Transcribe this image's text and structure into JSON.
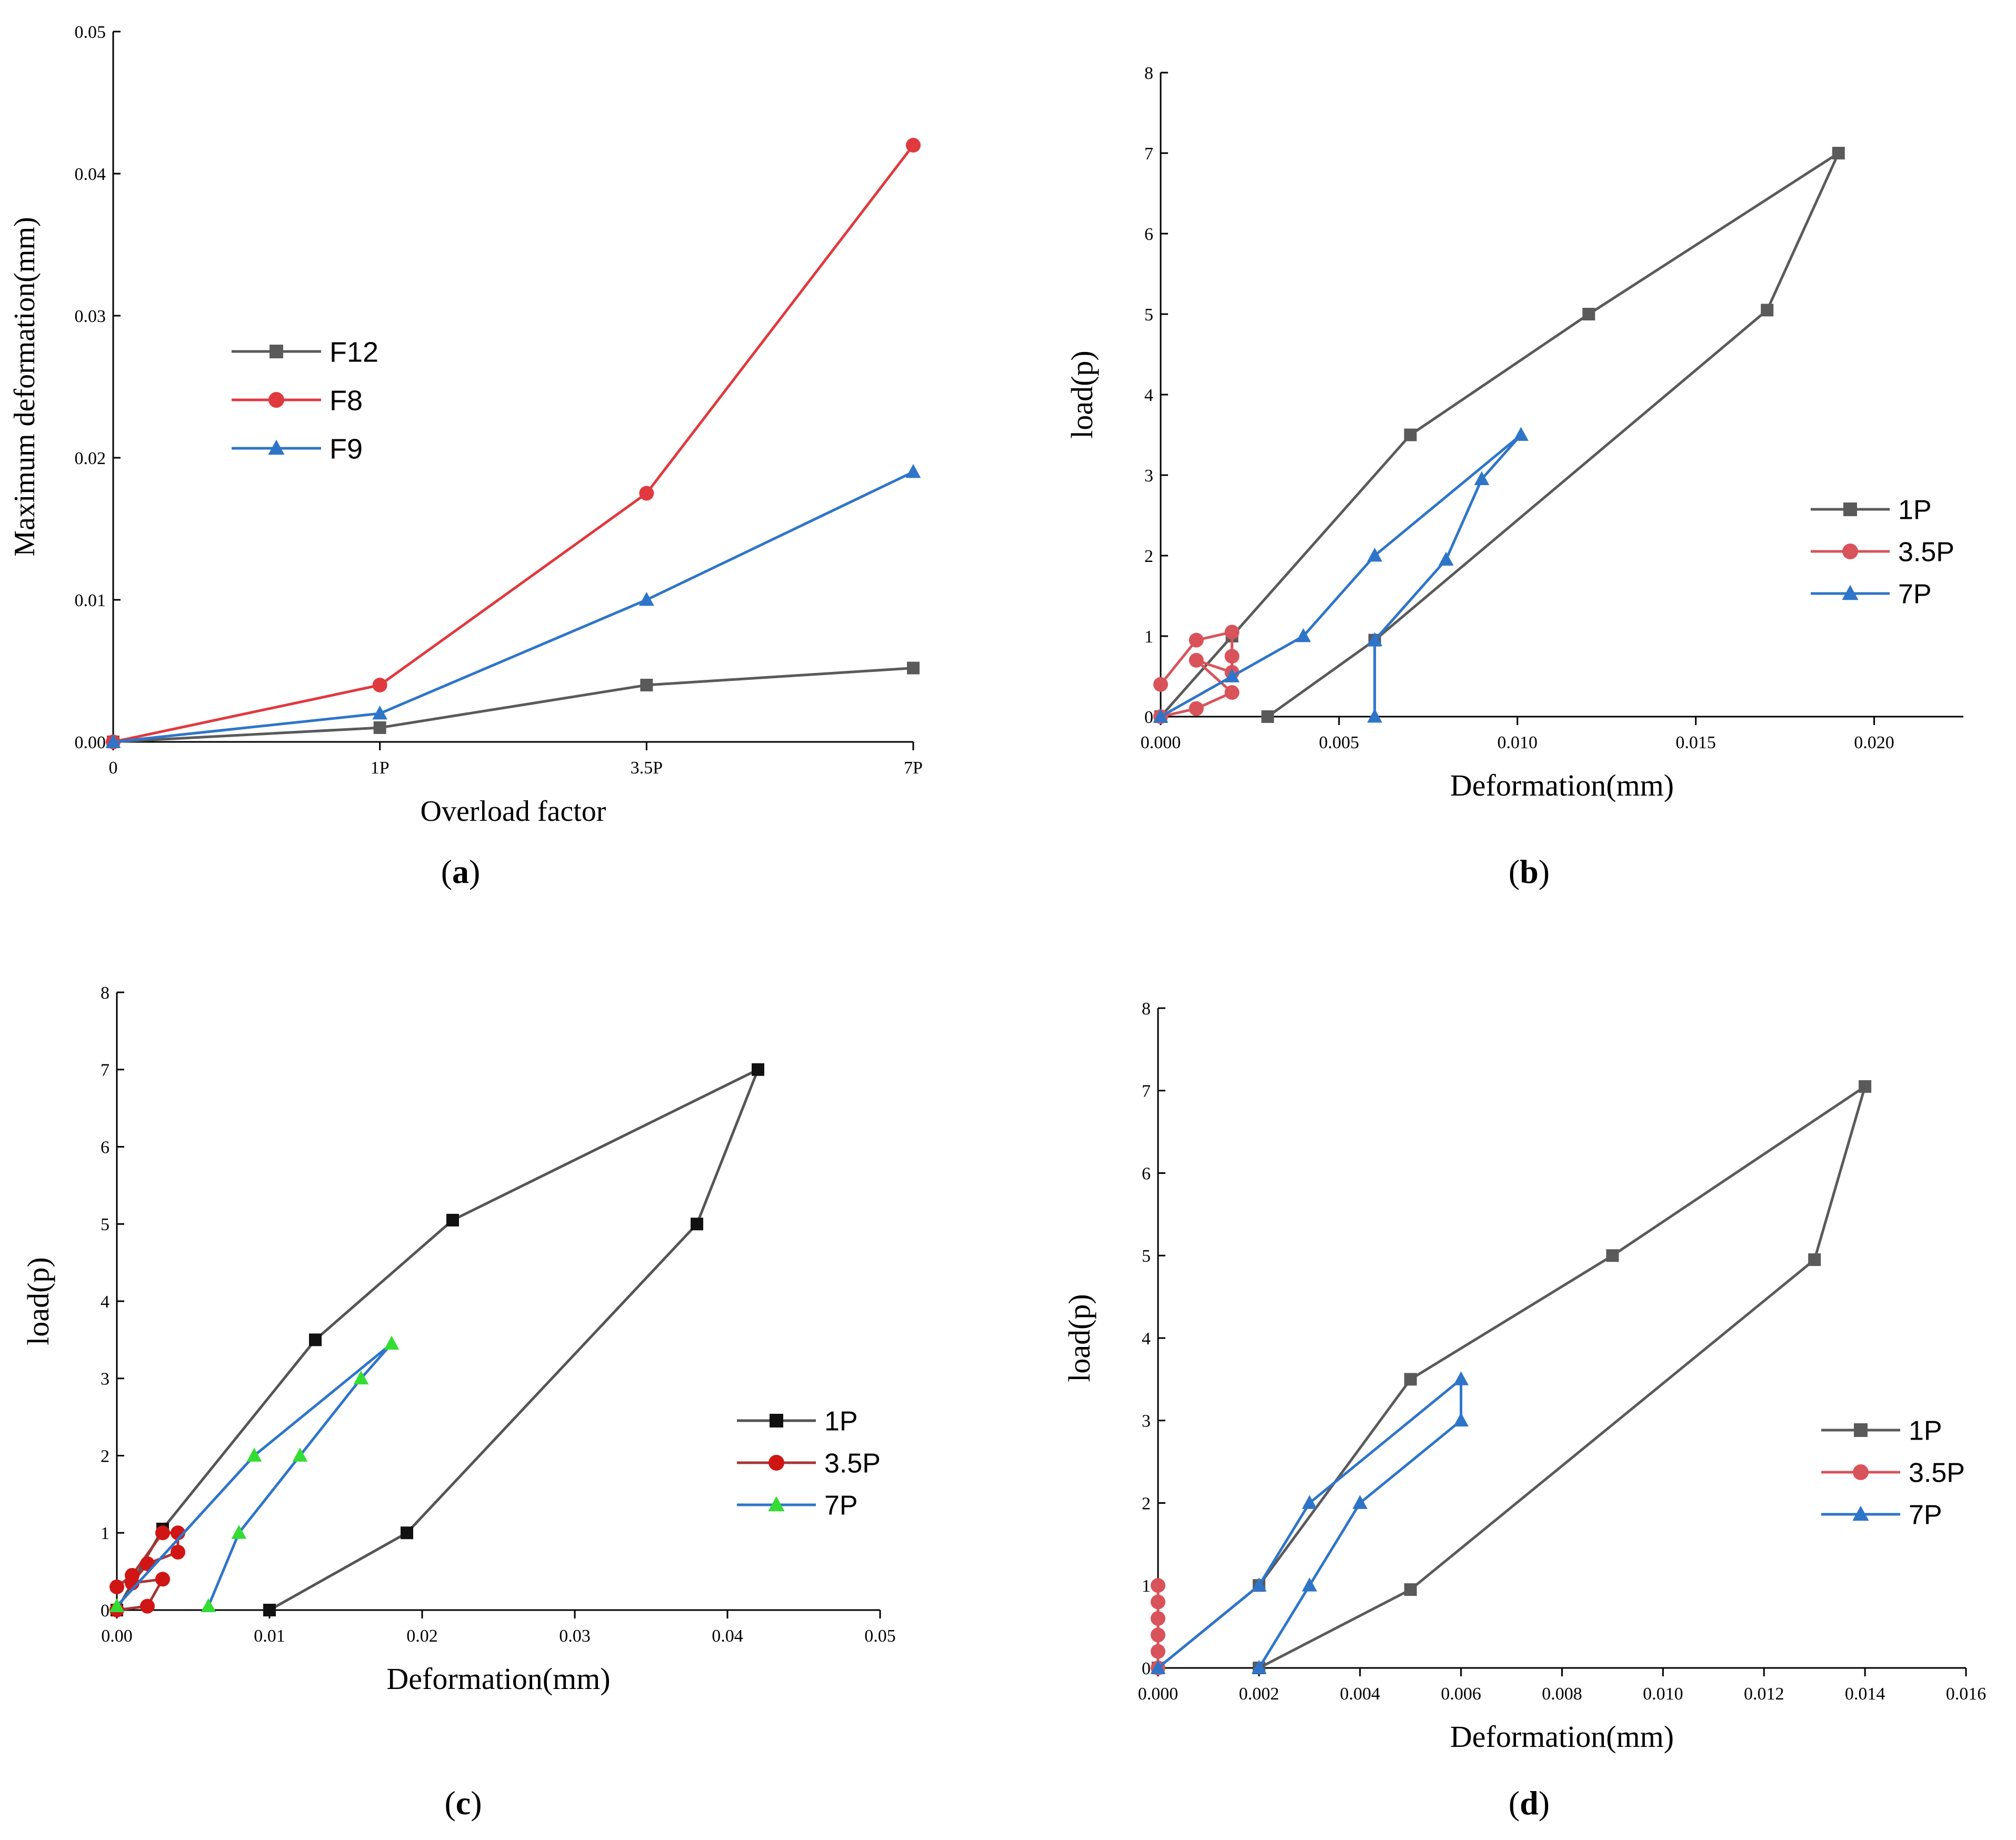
{
  "chart_data": [
    {
      "id": "a",
      "type": "line",
      "panel_label": "(a)",
      "xlabel": "Overload factor",
      "ylabel": "Maximum deformation(mm)",
      "categories": [
        "0",
        "1P",
        "3.5P",
        "7P"
      ],
      "ylim": [
        0,
        0.05
      ],
      "yticks": [
        "0.00",
        "0.01",
        "0.02",
        "0.03",
        "0.04",
        "0.05"
      ],
      "legend_position": "middle-left",
      "series": [
        {
          "name": "F12",
          "color": "#5a5a5a",
          "marker": "square",
          "values": [
            0,
            0.001,
            0.004,
            0.0052
          ]
        },
        {
          "name": "F8",
          "color": "#e0393e",
          "marker": "circle",
          "values": [
            0,
            0.004,
            0.0175,
            0.042
          ]
        },
        {
          "name": "F9",
          "color": "#2e75c9",
          "marker": "triangle",
          "values": [
            0,
            0.002,
            0.01,
            0.019
          ]
        }
      ]
    },
    {
      "id": "b",
      "type": "line",
      "panel_label": "(b)",
      "xlabel": "Deformation(mm)",
      "ylabel": "load(p)",
      "xlim": [
        0,
        0.0225
      ],
      "ylim": [
        0,
        8
      ],
      "xticks": [
        "0.000",
        "0.005",
        "0.010",
        "0.015",
        "0.020"
      ],
      "yticks": [
        "0",
        "1",
        "2",
        "3",
        "4",
        "5",
        "6",
        "7",
        "8"
      ],
      "legend_position": "right",
      "series": [
        {
          "name": "1P",
          "color": "#5a5a5a",
          "marker": "square",
          "points": [
            [
              0,
              0
            ],
            [
              0.002,
              1
            ],
            [
              0.007,
              3.5
            ],
            [
              0.012,
              5
            ],
            [
              0.019,
              7
            ],
            [
              0.017,
              5.05
            ],
            [
              0.006,
              0.95
            ],
            [
              0.003,
              0
            ]
          ]
        },
        {
          "name": "3.5P",
          "color": "#d9535a",
          "marker": "circle",
          "points": [
            [
              0,
              0.4
            ],
            [
              0.001,
              0.95
            ],
            [
              0.002,
              1.05
            ],
            [
              0.002,
              0.75
            ],
            [
              0.002,
              0.55
            ],
            [
              0.001,
              0.7
            ],
            [
              0.002,
              0.3
            ],
            [
              0.001,
              0.1
            ],
            [
              0,
              0
            ]
          ]
        },
        {
          "name": "7P",
          "color": "#2e75c9",
          "marker": "triangle",
          "points": [
            [
              0,
              0
            ],
            [
              0.002,
              0.5
            ],
            [
              0.004,
              1
            ],
            [
              0.006,
              2
            ],
            [
              0.0101,
              3.5
            ],
            [
              0.009,
              2.95
            ],
            [
              0.008,
              1.95
            ],
            [
              0.006,
              0.95
            ],
            [
              0.006,
              0
            ]
          ]
        }
      ]
    },
    {
      "id": "c",
      "type": "line",
      "panel_label": "(c)",
      "xlabel": "Deformation(mm)",
      "ylabel": "load(p)",
      "xlim": [
        0,
        0.05
      ],
      "ylim": [
        0,
        8
      ],
      "xticks": [
        "0.00",
        "0.01",
        "0.02",
        "0.03",
        "0.04",
        "0.05"
      ],
      "yticks": [
        "0",
        "1",
        "2",
        "3",
        "4",
        "5",
        "6",
        "7",
        "8"
      ],
      "legend_position": "right",
      "series": [
        {
          "name": "1P",
          "color": "#111111",
          "marker": "square",
          "line_color": "#555555",
          "points": [
            [
              0,
              0
            ],
            [
              0.003,
              1.05
            ],
            [
              0.013,
              3.5
            ],
            [
              0.022,
              5.05
            ],
            [
              0.042,
              7
            ],
            [
              0.038,
              5
            ],
            [
              0.019,
              1
            ],
            [
              0.01,
              0
            ]
          ]
        },
        {
          "name": "3.5P",
          "color": "#d01515",
          "marker": "circle",
          "line_color": "#a83535",
          "points": [
            [
              0,
              0.3
            ],
            [
              0.001,
              0.45
            ],
            [
              0.003,
              1
            ],
            [
              0.004,
              1
            ],
            [
              0.004,
              0.75
            ],
            [
              0.002,
              0.6
            ],
            [
              0.001,
              0.35
            ],
            [
              0.003,
              0.4
            ],
            [
              0.002,
              0.05
            ],
            [
              0,
              0
            ]
          ]
        },
        {
          "name": "7P",
          "color": "#33dd33",
          "marker": "triangle",
          "line_color": "#2e75c9",
          "points": [
            [
              0,
              0.05
            ],
            [
              0.009,
              2
            ],
            [
              0.018,
              3.45
            ],
            [
              0.016,
              3
            ],
            [
              0.012,
              2
            ],
            [
              0.008,
              1
            ],
            [
              0.006,
              0.05
            ]
          ]
        }
      ]
    },
    {
      "id": "d",
      "type": "line",
      "panel_label": "(d)",
      "xlabel": "Deformation(mm)",
      "ylabel": "load(p)",
      "xlim": [
        0,
        0.016
      ],
      "ylim": [
        0,
        8
      ],
      "xticks": [
        "0.000",
        "0.002",
        "0.004",
        "0.006",
        "0.008",
        "0.010",
        "0.012",
        "0.014",
        "0.016"
      ],
      "yticks": [
        "0",
        "1",
        "2",
        "3",
        "4",
        "5",
        "6",
        "7",
        "8"
      ],
      "legend_position": "right",
      "series": [
        {
          "name": "1P",
          "color": "#5a5a5a",
          "marker": "square",
          "points": [
            [
              0,
              0
            ],
            [
              0.002,
              1
            ],
            [
              0.005,
              3.5
            ],
            [
              0.009,
              5
            ],
            [
              0.014,
              7.05
            ],
            [
              0.013,
              4.95
            ],
            [
              0.005,
              0.95
            ],
            [
              0.002,
              0
            ]
          ]
        },
        {
          "name": "3.5P",
          "color": "#d9535a",
          "marker": "circle",
          "points": [
            [
              0,
              1
            ],
            [
              0,
              0.8
            ],
            [
              0,
              0.6
            ],
            [
              0,
              0.4
            ],
            [
              0,
              0.2
            ],
            [
              0,
              0
            ]
          ]
        },
        {
          "name": "7P",
          "color": "#2e75c9",
          "marker": "triangle",
          "points": [
            [
              0,
              0
            ],
            [
              0.002,
              1
            ],
            [
              0.003,
              2
            ],
            [
              0.006,
              3.5
            ],
            [
              0.006,
              3
            ],
            [
              0.004,
              2
            ],
            [
              0.003,
              1
            ],
            [
              0.002,
              0
            ]
          ]
        }
      ]
    }
  ]
}
